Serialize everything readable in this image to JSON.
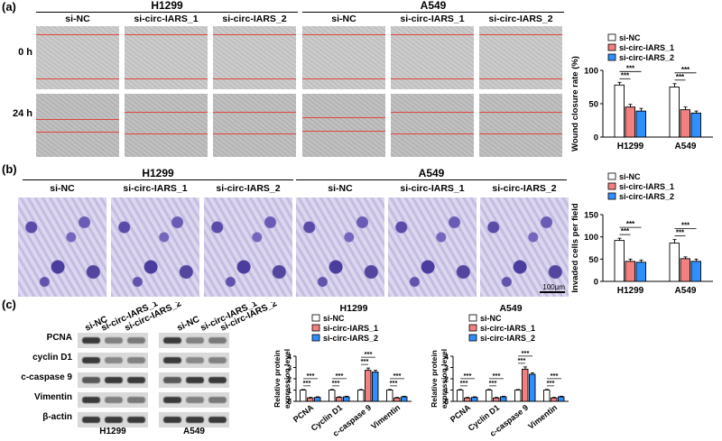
{
  "panels": {
    "a": "(a)",
    "b": "(b)",
    "c": "(c)"
  },
  "cell_lines": {
    "h1299": "H1299",
    "a549": "A549"
  },
  "conditions": [
    "si-NC",
    "si-circ-IARS_1",
    "si-circ-IARS_2"
  ],
  "time_labels": {
    "t0": "0 h",
    "t24": "24 h"
  },
  "scale_bar": "100μm",
  "blot_proteins": [
    "PCNA",
    "cyclin D1",
    "c-caspase 9",
    "Vimentin",
    "β-actin"
  ],
  "colors": {
    "si-NC": "#ffffff",
    "si-circ-IARS_1": "#f28080",
    "si-circ-IARS_2": "#2f8fff"
  },
  "chart_data": [
    {
      "id": "wound",
      "type": "bar",
      "ylabel": "Wound closure rate (%)",
      "categories": [
        "H1299",
        "A549"
      ],
      "ylim": [
        0,
        100
      ],
      "yticks": [
        0,
        50,
        100
      ],
      "legend": "top",
      "series": [
        {
          "name": "si-NC",
          "values": [
            78,
            75
          ],
          "err": [
            4,
            5
          ]
        },
        {
          "name": "si-circ-IARS_1",
          "values": [
            45,
            41
          ],
          "err": [
            4,
            4
          ]
        },
        {
          "name": "si-circ-IARS_2",
          "values": [
            39,
            36
          ],
          "err": [
            4,
            3
          ]
        }
      ],
      "annotations": [
        "***",
        "***",
        "***",
        "***"
      ]
    },
    {
      "id": "invaded",
      "type": "bar",
      "ylabel": "Invaded cells per field",
      "categories": [
        "H1299",
        "A549"
      ],
      "ylim": [
        0,
        150
      ],
      "yticks": [
        0,
        50,
        100,
        150
      ],
      "legend": "top",
      "series": [
        {
          "name": "si-NC",
          "values": [
            92,
            86
          ],
          "err": [
            5,
            8
          ]
        },
        {
          "name": "si-circ-IARS_1",
          "values": [
            45,
            51
          ],
          "err": [
            5,
            4
          ]
        },
        {
          "name": "si-circ-IARS_2",
          "values": [
            43,
            45
          ],
          "err": [
            5,
            5
          ]
        }
      ],
      "annotations": [
        "***",
        "***",
        "***",
        "***"
      ]
    },
    {
      "id": "prot_h1299",
      "type": "bar",
      "title": "H1299",
      "ylabel": "Relative protein expression level",
      "categories": [
        "PCNA",
        "Cyclin D1",
        "c-caspase 9",
        "Vimentin"
      ],
      "ylim": [
        0,
        4
      ],
      "yticks": [
        0,
        1,
        2,
        3,
        4
      ],
      "legend": "top",
      "series": [
        {
          "name": "si-NC",
          "values": [
            1.0,
            1.0,
            1.0,
            1.0
          ],
          "err": [
            0.05,
            0.05,
            0.05,
            0.05
          ]
        },
        {
          "name": "si-circ-IARS_1",
          "values": [
            0.3,
            0.35,
            2.75,
            0.3
          ],
          "err": [
            0.05,
            0.05,
            0.2,
            0.05
          ]
        },
        {
          "name": "si-circ-IARS_2",
          "values": [
            0.35,
            0.4,
            2.6,
            0.4
          ],
          "err": [
            0.05,
            0.05,
            0.15,
            0.05
          ]
        }
      ],
      "annotations": [
        "***",
        "***"
      ]
    },
    {
      "id": "prot_a549",
      "type": "bar",
      "title": "A549",
      "ylabel": "Relative protein expression level",
      "categories": [
        "PCNA",
        "Cyclin D1",
        "c-caspase 9",
        "Vimentin"
      ],
      "ylim": [
        0,
        4
      ],
      "yticks": [
        0,
        1,
        2,
        3,
        4
      ],
      "legend": "top",
      "series": [
        {
          "name": "si-NC",
          "values": [
            1.0,
            1.0,
            1.0,
            1.0
          ],
          "err": [
            0.05,
            0.05,
            0.05,
            0.05
          ]
        },
        {
          "name": "si-circ-IARS_1",
          "values": [
            0.3,
            0.3,
            2.85,
            0.3
          ],
          "err": [
            0.05,
            0.05,
            0.2,
            0.05
          ]
        },
        {
          "name": "si-circ-IARS_2",
          "values": [
            0.35,
            0.4,
            2.4,
            0.4
          ],
          "err": [
            0.05,
            0.05,
            0.12,
            0.05
          ]
        }
      ],
      "annotations": [
        "***",
        "***"
      ]
    }
  ]
}
